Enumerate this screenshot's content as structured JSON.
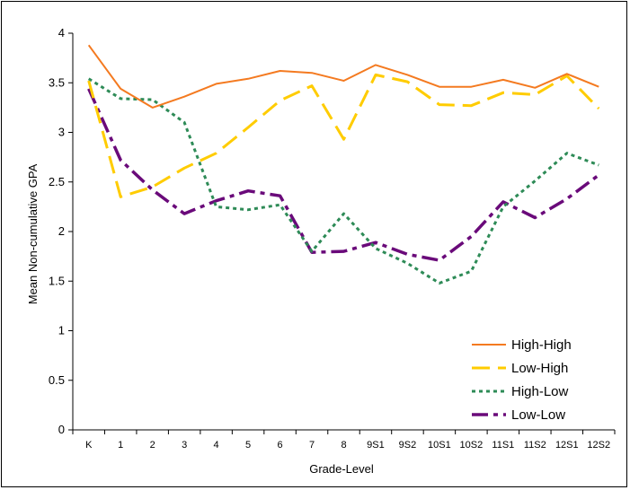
{
  "chart_data": {
    "type": "line",
    "title": "",
    "xlabel": "Grade-Level",
    "ylabel": "Mean Non-cumulative GPA",
    "ylim": [
      0,
      4
    ],
    "yticks": [
      0,
      0.5,
      1,
      1.5,
      2,
      2.5,
      3,
      3.5,
      4
    ],
    "ytick_labels": [
      "0",
      "0.5",
      "1",
      "1.5",
      "2",
      "2.5",
      "3",
      "3.5",
      "4"
    ],
    "categories": [
      "K",
      "1",
      "2",
      "3",
      "4",
      "5",
      "6",
      "7",
      "8",
      "9S1",
      "9S2",
      "10S1",
      "10S2",
      "11S1",
      "11S2",
      "12S1",
      "12S2"
    ],
    "grid": false,
    "legend_position": "bottom-right",
    "series": [
      {
        "name": "High-High",
        "color": "#F47A20",
        "dash": "solid",
        "values": [
          3.88,
          3.44,
          3.25,
          3.36,
          3.49,
          3.54,
          3.62,
          3.6,
          3.52,
          3.68,
          3.58,
          3.46,
          3.46,
          3.53,
          3.45,
          3.59,
          3.46
        ]
      },
      {
        "name": "Low-High",
        "color": "#FFCC00",
        "dash": "long-dash",
        "values": [
          3.52,
          2.35,
          2.45,
          2.64,
          2.79,
          3.05,
          3.32,
          3.47,
          2.93,
          3.58,
          3.51,
          3.28,
          3.27,
          3.4,
          3.38,
          3.57,
          3.24
        ]
      },
      {
        "name": "High-Low",
        "color": "#2E8B57",
        "dash": "dotted",
        "values": [
          3.54,
          3.34,
          3.33,
          3.1,
          2.25,
          2.22,
          2.27,
          1.8,
          2.18,
          1.83,
          1.68,
          1.48,
          1.6,
          2.25,
          2.51,
          2.79,
          2.67
        ]
      },
      {
        "name": "Low-Low",
        "color": "#6A0A7A",
        "dash": "dash-dot",
        "values": [
          3.44,
          2.72,
          2.42,
          2.18,
          2.31,
          2.41,
          2.36,
          1.79,
          1.8,
          1.89,
          1.77,
          1.71,
          1.95,
          2.3,
          2.14,
          2.33,
          2.57
        ]
      }
    ]
  }
}
